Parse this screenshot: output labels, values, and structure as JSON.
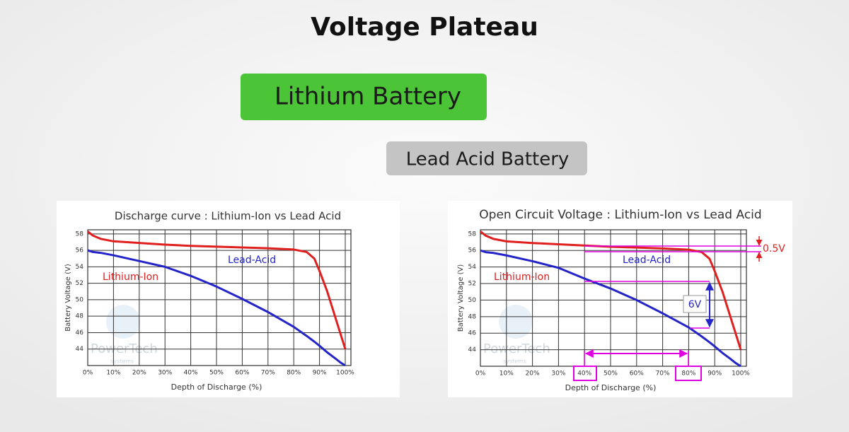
{
  "page": {
    "title": "Voltage Plateau",
    "badges": [
      "Lithium Battery",
      "Lead Acid Battery"
    ]
  },
  "chart_data": [
    {
      "type": "line",
      "title": "Discharge curve : Lithium-Ion vs Lead Acid",
      "x_label": "Depth of Discharge (%)",
      "y_label": "Battery Voltage (V)",
      "x": [
        0,
        2,
        5,
        10,
        20,
        30,
        40,
        50,
        60,
        70,
        80,
        85,
        88,
        90,
        93,
        96,
        98,
        100
      ],
      "series": [
        {
          "name": "Lithium-Ion",
          "color": "#e01f1f",
          "values": [
            58.3,
            57.8,
            57.4,
            57.1,
            56.9,
            56.7,
            56.55,
            56.45,
            56.35,
            56.25,
            56.1,
            55.8,
            55.0,
            53.5,
            51.0,
            48.0,
            46.0,
            44.0
          ]
        },
        {
          "name": "Lead-Acid",
          "color": "#2424c8",
          "values": [
            56.0,
            55.8,
            55.7,
            55.4,
            54.7,
            54.0,
            52.9,
            51.6,
            50.1,
            48.5,
            46.7,
            45.6,
            44.9,
            44.4,
            43.6,
            42.9,
            42.4,
            42.0
          ]
        }
      ],
      "xlim": [
        0,
        100
      ],
      "ylim": [
        42,
        58.5
      ],
      "xticks": [
        {
          "value": 0,
          "label": "0%"
        },
        {
          "value": 10,
          "label": "10%"
        },
        {
          "value": 20,
          "label": "20%"
        },
        {
          "value": 30,
          "label": "30%"
        },
        {
          "value": 40,
          "label": "40%"
        },
        {
          "value": 50,
          "label": "50%"
        },
        {
          "value": 60,
          "label": "60%"
        },
        {
          "value": 70,
          "label": "70%"
        },
        {
          "value": 80,
          "label": "80%"
        },
        {
          "value": 90,
          "label": "90%"
        },
        {
          "value": 100,
          "label": "100%"
        }
      ],
      "yticks": [
        44,
        46,
        48,
        50,
        52,
        54,
        56,
        58
      ],
      "grid": true,
      "watermark": [
        "PowerTech",
        "systems"
      ]
    },
    {
      "type": "line",
      "title": "Open Circuit Voltage : Lithium-Ion vs Lead Acid",
      "x_label": "Depth of Discharge (%)",
      "y_label": "Battery Voltage (V)",
      "x": [
        0,
        2,
        5,
        10,
        20,
        30,
        40,
        50,
        60,
        70,
        80,
        85,
        88,
        90,
        93,
        96,
        98,
        100
      ],
      "series": [
        {
          "name": "Lithium-Ion",
          "color": "#e01f1f",
          "values": [
            58.3,
            57.8,
            57.4,
            57.1,
            56.9,
            56.75,
            56.6,
            56.45,
            56.35,
            56.25,
            56.1,
            55.8,
            55.0,
            53.5,
            51.0,
            48.0,
            46.0,
            44.0
          ]
        },
        {
          "name": "Lead-Acid",
          "color": "#2424c8",
          "values": [
            56.0,
            55.8,
            55.7,
            55.4,
            54.7,
            53.9,
            52.6,
            51.4,
            50.0,
            48.4,
            46.7,
            45.6,
            44.9,
            44.4,
            43.6,
            42.9,
            42.4,
            42.0
          ]
        }
      ],
      "xlim": [
        0,
        100
      ],
      "ylim": [
        42,
        58.5
      ],
      "xticks": [
        {
          "value": 0,
          "label": "0%"
        },
        {
          "value": 10,
          "label": "10%"
        },
        {
          "value": 20,
          "label": "20%"
        },
        {
          "value": 30,
          "label": "30%"
        },
        {
          "value": 40,
          "label": "40%"
        },
        {
          "value": 50,
          "label": "50%"
        },
        {
          "value": 60,
          "label": "60%"
        },
        {
          "value": 70,
          "label": "70%"
        },
        {
          "value": 80,
          "label": "80%"
        },
        {
          "value": 90,
          "label": "90%"
        },
        {
          "value": 100,
          "label": "100%"
        }
      ],
      "yticks": [
        44,
        46,
        48,
        50,
        52,
        54,
        56,
        58
      ],
      "grid": true,
      "annotations": [
        "0.5V",
        "6V"
      ],
      "watermark": [
        "PowerTech",
        "systems"
      ]
    }
  ]
}
